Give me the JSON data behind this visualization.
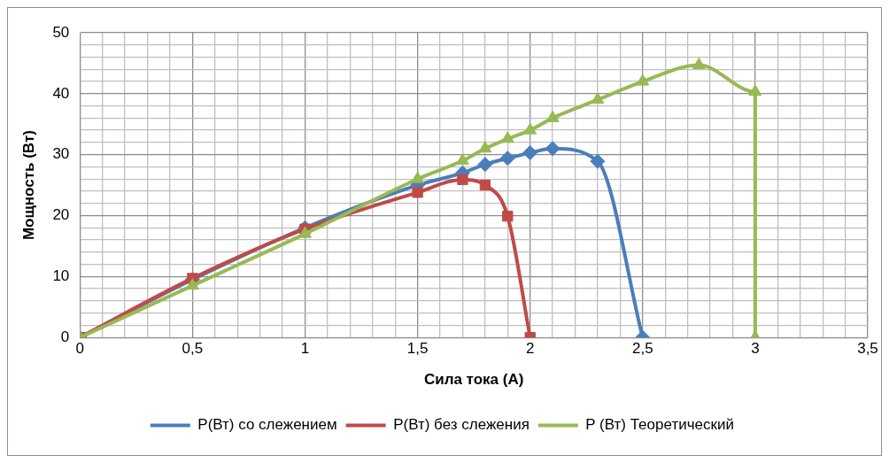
{
  "chart_data": {
    "type": "line",
    "xlabel": "Сила тока (А)",
    "ylabel": "Мощность (Вт)",
    "xlim": [
      0,
      3.5
    ],
    "xticks": [
      0,
      {
        "value": 0.1,
        "label": null
      },
      {
        "value": 0.2,
        "label": null
      },
      {
        "value": 0.3,
        "label": null
      },
      {
        "value": 0.4,
        "label": null
      },
      {
        "value": 0.5,
        "label": "0,5"
      },
      {
        "value": 0.6,
        "label": null
      },
      {
        "value": 0.7,
        "label": null
      },
      {
        "value": 0.8,
        "label": null
      },
      {
        "value": 0.9,
        "label": null
      },
      1,
      {
        "value": 1.1,
        "label": null
      },
      {
        "value": 1.2,
        "label": null
      },
      {
        "value": 1.3,
        "label": null
      },
      {
        "value": 1.4,
        "label": null
      },
      {
        "value": 1.5,
        "label": "1,5"
      },
      {
        "value": 1.6,
        "label": null
      },
      {
        "value": 1.7,
        "label": null
      },
      {
        "value": 1.8,
        "label": null
      },
      {
        "value": 1.9,
        "label": null
      },
      2,
      {
        "value": 2.1,
        "label": null
      },
      {
        "value": 2.2,
        "label": null
      },
      {
        "value": 2.3,
        "label": null
      },
      {
        "value": 2.4,
        "label": null
      },
      {
        "value": 2.5,
        "label": "2,5"
      },
      {
        "value": 2.6,
        "label": null
      },
      {
        "value": 2.7,
        "label": null
      },
      {
        "value": 2.8,
        "label": null
      },
      {
        "value": 2.9,
        "label": null
      },
      3,
      {
        "value": 3.1,
        "label": null
      },
      {
        "value": 3.2,
        "label": null
      },
      {
        "value": 3.3,
        "label": null
      },
      {
        "value": 3.4,
        "label": null
      },
      {
        "value": 3.5,
        "label": "3,5"
      }
    ],
    "ylim": [
      0,
      50
    ],
    "yticks": [
      0,
      {
        "value": 2,
        "label": null
      },
      {
        "value": 4,
        "label": null
      },
      {
        "value": 6,
        "label": null
      },
      {
        "value": 8,
        "label": null
      },
      10,
      {
        "value": 12,
        "label": null
      },
      {
        "value": 14,
        "label": null
      },
      {
        "value": 16,
        "label": null
      },
      {
        "value": 18,
        "label": null
      },
      20,
      {
        "value": 22,
        "label": null
      },
      {
        "value": 24,
        "label": null
      },
      {
        "value": 26,
        "label": null
      },
      {
        "value": 28,
        "label": null
      },
      30,
      {
        "value": 32,
        "label": null
      },
      {
        "value": 34,
        "label": null
      },
      {
        "value": 36,
        "label": null
      },
      {
        "value": 38,
        "label": null
      },
      40,
      {
        "value": 42,
        "label": null
      },
      {
        "value": 44,
        "label": null
      },
      {
        "value": 46,
        "label": null
      },
      {
        "value": 48,
        "label": null
      },
      50
    ],
    "grid": true,
    "legend": "bottom",
    "series": [
      {
        "name": "P(Вт) со слежением",
        "color": "#4a7ebb",
        "marker": "diamond",
        "x": [
          0,
          0.5,
          1,
          1.5,
          1.7,
          1.8,
          1.9,
          2,
          2.1,
          2.3,
          2.5
        ],
        "values": [
          0,
          9.5,
          18,
          25,
          27,
          28.4,
          29.4,
          30.3,
          31,
          28.9,
          0
        ]
      },
      {
        "name": "P(Вт) без слежения",
        "color": "#be4b48",
        "marker": "square",
        "x": [
          0,
          0.5,
          1,
          1.5,
          1.7,
          1.8,
          1.9,
          2
        ],
        "values": [
          0,
          9.7,
          17.8,
          23.8,
          25.9,
          25,
          19.9,
          0
        ]
      },
      {
        "name": "P (Вт) Теоретический",
        "color": "#98b954",
        "marker": "triangle",
        "x": [
          0,
          0.5,
          1,
          1.5,
          1.7,
          1.8,
          1.9,
          2,
          2.1,
          2.3,
          2.5,
          2.75,
          3,
          3
        ],
        "values": [
          0,
          8.5,
          17,
          26,
          29,
          31,
          32.6,
          34,
          36,
          39,
          42,
          44.7,
          40.3,
          0
        ]
      }
    ]
  }
}
